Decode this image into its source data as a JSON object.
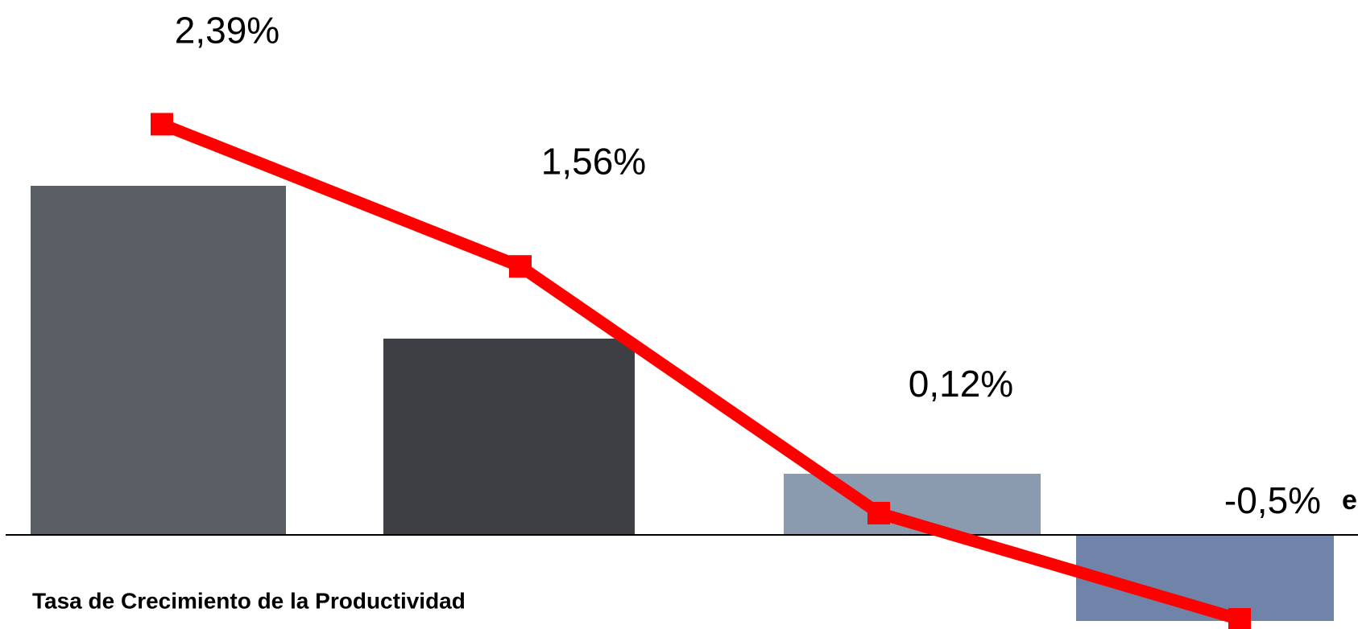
{
  "chart_data": {
    "type": "line",
    "title": "Tasa de Crecimiento de la Productividad",
    "annotation": "e",
    "categories": [
      null,
      null,
      null,
      null
    ],
    "series": [
      {
        "color": "#ff0000",
        "values": [
          2.39,
          1.56,
          0.12,
          -0.5
        ],
        "value_labels": [
          "2,39%",
          "1,56%",
          "0,12%",
          "-0,5%"
        ]
      }
    ],
    "ylim": [
      -0.5,
      2.5
    ]
  }
}
